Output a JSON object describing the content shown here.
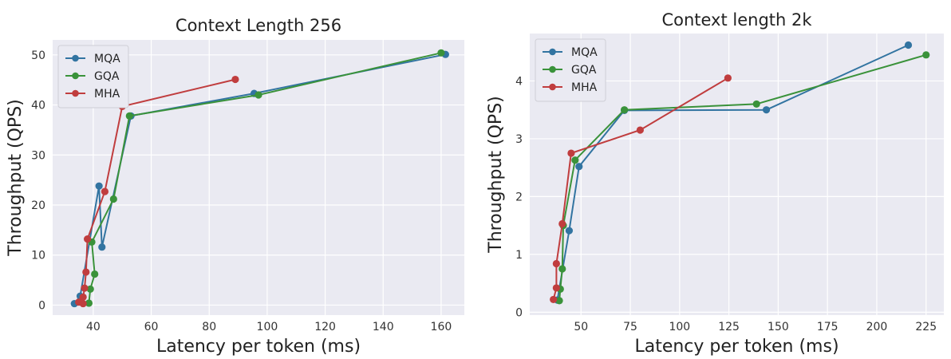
{
  "chart_data": [
    {
      "type": "line",
      "title": "Context Length 256",
      "xlabel": "Latency per token (ms)",
      "ylabel": "Throughput (QPS)",
      "xlim": [
        26,
        168
      ],
      "ylim": [
        -2,
        53
      ],
      "xticks": [
        40,
        60,
        80,
        100,
        120,
        140,
        160
      ],
      "yticks": [
        0,
        10,
        20,
        30,
        40,
        50
      ],
      "grid": true,
      "legend_position": "top-left",
      "series": [
        {
          "name": "MQA",
          "color": "#3274a1",
          "points": [
            [
              33.5,
              0.3
            ],
            [
              35.5,
              1.8
            ],
            [
              42,
              23.8
            ],
            [
              43,
              11.6
            ],
            [
              53,
              37.8
            ],
            [
              95.5,
              42.3
            ],
            [
              161.5,
              50.1
            ]
          ]
        },
        {
          "name": "GQA",
          "color": "#3a923a",
          "points": [
            [
              38.5,
              0.4
            ],
            [
              39,
              3.2
            ],
            [
              40.5,
              6.2
            ],
            [
              39.5,
              12.6
            ],
            [
              47,
              21.2
            ],
            [
              52.5,
              37.8
            ],
            [
              97,
              42
            ],
            [
              160,
              50.4
            ]
          ]
        },
        {
          "name": "MHA",
          "color": "#c03d3e",
          "points": [
            [
              35,
              0.6
            ],
            [
              36.5,
              0.3
            ],
            [
              36.5,
              1.6
            ],
            [
              37,
              3.4
            ],
            [
              37.5,
              6.6
            ],
            [
              38,
              13.2
            ],
            [
              44,
              22.7
            ],
            [
              50,
              39.7
            ],
            [
              89,
              45.1
            ]
          ]
        }
      ]
    },
    {
      "type": "line",
      "title": "Context length 2k",
      "xlabel": "Latency per token (ms)",
      "ylabel": "Throughput (QPS)",
      "xlim": [
        24,
        234
      ],
      "ylim": [
        -0.05,
        4.82
      ],
      "xticks": [
        50,
        75,
        100,
        125,
        150,
        175,
        200,
        225
      ],
      "yticks": [
        0,
        1,
        2,
        3,
        4
      ],
      "grid": true,
      "legend_position": "top-left",
      "series": [
        {
          "name": "MQA",
          "color": "#3274a1",
          "points": [
            [
              38,
              0.21
            ],
            [
              44,
              1.41
            ],
            [
              49,
              2.52
            ],
            [
              72,
              3.49
            ],
            [
              144,
              3.5
            ],
            [
              216,
              4.62
            ]
          ]
        },
        {
          "name": "GQA",
          "color": "#3a923a",
          "points": [
            [
              39,
              0.2
            ],
            [
              39.5,
              0.4
            ],
            [
              40.5,
              0.75
            ],
            [
              41,
              1.5
            ],
            [
              47,
              2.63
            ],
            [
              72,
              3.5
            ],
            [
              139,
              3.6
            ],
            [
              225,
              4.45
            ]
          ]
        },
        {
          "name": "MHA",
          "color": "#c03d3e",
          "points": [
            [
              36,
              0.22
            ],
            [
              37.5,
              0.42
            ],
            [
              37.5,
              0.84
            ],
            [
              40.5,
              1.53
            ],
            [
              45,
              2.75
            ],
            [
              80,
              3.15
            ],
            [
              124.5,
              4.05
            ]
          ]
        }
      ]
    }
  ]
}
